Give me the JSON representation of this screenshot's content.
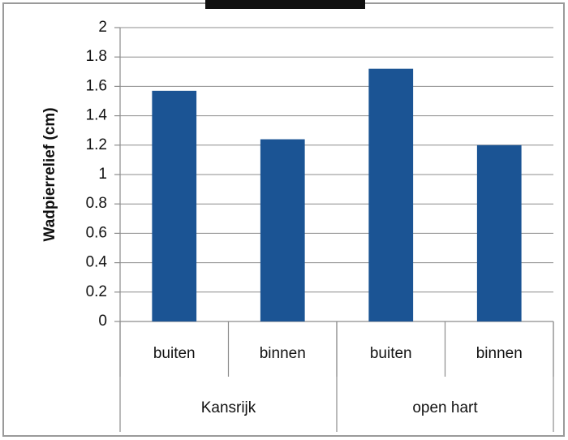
{
  "chart_data": {
    "type": "bar",
    "y_label": "Wadpierrelief (cm)",
    "categories": [
      "buiten",
      "binnen",
      "buiten",
      "binnen"
    ],
    "groups": [
      "Kansrijk",
      "open hart"
    ],
    "values": [
      1.57,
      1.24,
      1.72,
      1.2
    ],
    "color": "#1b5494",
    "ylim": [
      0,
      2
    ],
    "yticks": [
      0,
      0.2,
      0.4,
      0.6,
      0.8,
      1,
      1.2,
      1.4,
      1.6,
      1.8,
      2
    ],
    "grid": true
  }
}
